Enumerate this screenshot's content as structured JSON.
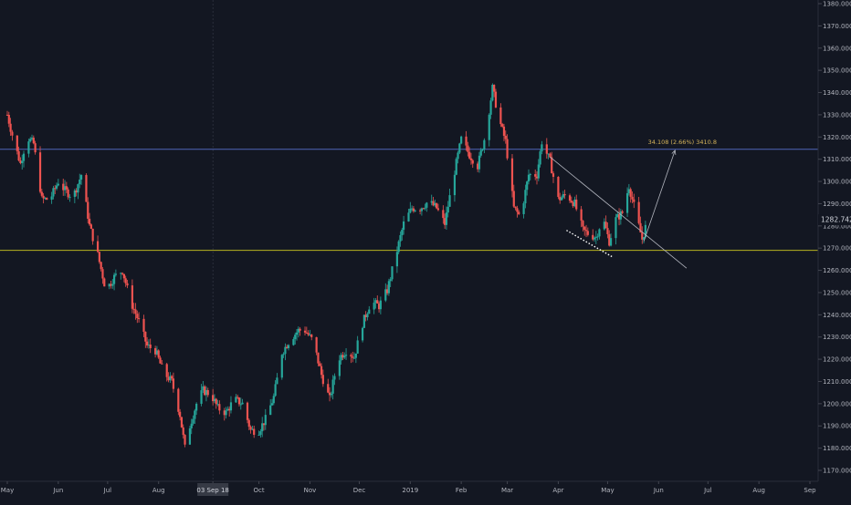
{
  "chart_data": {
    "type": "candlestick",
    "title": "",
    "xlabel": "",
    "ylabel": "",
    "ylim": [
      1165,
      1382
    ],
    "y_ticks": [
      1170,
      1180,
      1190,
      1200,
      1210,
      1220,
      1230,
      1240,
      1250,
      1260,
      1270,
      1280,
      1290,
      1300,
      1310,
      1320,
      1330,
      1340,
      1350,
      1360,
      1370,
      1380
    ],
    "y_tick_labels": [
      "1170.000",
      "1180.000",
      "1190.000",
      "1200.000",
      "1210.000",
      "1220.000",
      "1230.000",
      "1240.000",
      "1250.000",
      "1260.000",
      "1270.000",
      "1280.000",
      "1290.000",
      "1300.000",
      "1310.000",
      "1320.000",
      "1330.000",
      "1340.000",
      "1350.000",
      "1360.000",
      "1370.000",
      "1380.000"
    ],
    "x_labels": [
      "May",
      "Jun",
      "Jul",
      "Aug",
      "03 Sep 18",
      "Oct",
      "Nov",
      "Dec",
      "2019",
      "Feb",
      "Mar",
      "Apr",
      "May",
      "Jun",
      "Jul",
      "Aug",
      "Sep"
    ],
    "highlighted_date": "03 Sep 18",
    "last_price": "1282.742",
    "price_path": [
      [
        "2018-05-01",
        1330
      ],
      [
        "2018-05-05",
        1318
      ],
      [
        "2018-05-09",
        1308
      ],
      [
        "2018-05-13",
        1320
      ],
      [
        "2018-05-17",
        1317
      ],
      [
        "2018-05-22",
        1292
      ],
      [
        "2018-05-27",
        1292
      ],
      [
        "2018-06-01",
        1300
      ],
      [
        "2018-06-05",
        1296
      ],
      [
        "2018-06-10",
        1293
      ],
      [
        "2018-06-15",
        1303
      ],
      [
        "2018-06-20",
        1280
      ],
      [
        "2018-06-25",
        1267
      ],
      [
        "2018-06-30",
        1251
      ],
      [
        "2018-07-05",
        1257
      ],
      [
        "2018-07-10",
        1260
      ],
      [
        "2018-07-15",
        1246
      ],
      [
        "2018-07-20",
        1237
      ],
      [
        "2018-07-25",
        1226
      ],
      [
        "2018-07-30",
        1224
      ],
      [
        "2018-08-04",
        1214
      ],
      [
        "2018-08-09",
        1210
      ],
      [
        "2018-08-14",
        1195
      ],
      [
        "2018-08-17",
        1180
      ],
      [
        "2018-08-20",
        1190
      ],
      [
        "2018-08-24",
        1200
      ],
      [
        "2018-08-28",
        1206
      ],
      [
        "2018-09-02",
        1204
      ],
      [
        "2018-09-06",
        1198
      ],
      [
        "2018-09-11",
        1196
      ],
      [
        "2018-09-16",
        1202
      ],
      [
        "2018-09-21",
        1200
      ],
      [
        "2018-09-26",
        1188
      ],
      [
        "2018-10-01",
        1188
      ],
      [
        "2018-10-05",
        1193
      ],
      [
        "2018-10-10",
        1203
      ],
      [
        "2018-10-15",
        1223
      ],
      [
        "2018-10-20",
        1229
      ],
      [
        "2018-10-25",
        1233
      ],
      [
        "2018-10-29",
        1233
      ],
      [
        "2018-11-03",
        1228
      ],
      [
        "2018-11-08",
        1213
      ],
      [
        "2018-11-13",
        1202
      ],
      [
        "2018-11-18",
        1220
      ],
      [
        "2018-11-23",
        1224
      ],
      [
        "2018-11-28",
        1221
      ],
      [
        "2018-12-03",
        1236
      ],
      [
        "2018-12-08",
        1246
      ],
      [
        "2018-12-13",
        1244
      ],
      [
        "2018-12-18",
        1251
      ],
      [
        "2018-12-23",
        1266
      ],
      [
        "2018-12-28",
        1281
      ],
      [
        "2019-01-02",
        1288
      ],
      [
        "2019-01-07",
        1288
      ],
      [
        "2019-01-12",
        1291
      ],
      [
        "2019-01-17",
        1288
      ],
      [
        "2019-01-22",
        1281
      ],
      [
        "2019-01-27",
        1301
      ],
      [
        "2019-02-01",
        1319
      ],
      [
        "2019-02-06",
        1312
      ],
      [
        "2019-02-11",
        1307
      ],
      [
        "2019-02-16",
        1322
      ],
      [
        "2019-02-20",
        1342
      ],
      [
        "2019-02-24",
        1328
      ],
      [
        "2019-02-28",
        1318
      ],
      [
        "2019-03-05",
        1288
      ],
      [
        "2019-03-09",
        1284
      ],
      [
        "2019-03-14",
        1303
      ],
      [
        "2019-03-19",
        1303
      ],
      [
        "2019-03-22",
        1318
      ],
      [
        "2019-03-27",
        1309
      ],
      [
        "2019-04-01",
        1292
      ],
      [
        "2019-04-06",
        1294
      ],
      [
        "2019-04-11",
        1290
      ],
      [
        "2019-04-16",
        1278
      ],
      [
        "2019-04-20",
        1276
      ],
      [
        "2019-04-24",
        1275
      ],
      [
        "2019-04-28",
        1284
      ],
      [
        "2019-05-02",
        1273
      ],
      [
        "2019-05-06",
        1283
      ],
      [
        "2019-05-10",
        1286
      ],
      [
        "2019-05-14",
        1298
      ],
      [
        "2019-05-18",
        1286
      ],
      [
        "2019-05-22",
        1274
      ],
      [
        "2019-05-25",
        1282
      ]
    ],
    "horizontal_lines": [
      {
        "price": 1314.5,
        "color": "#4f67b8"
      },
      {
        "price": 1269,
        "color": "#b6b321"
      }
    ],
    "projection": {
      "start": [
        "2019-05-23",
        1273
      ],
      "end": [
        "2019-06-11",
        1314
      ],
      "label": "34.108 (2.66%) 3410.8",
      "color": "#d6b55a"
    },
    "trendline": {
      "start": [
        "2019-03-27",
        1311
      ],
      "end": [
        "2019-06-18",
        1261
      ]
    },
    "dotted_support": {
      "start": [
        "2019-04-06",
        1278
      ],
      "end": [
        "2019-05-04",
        1266
      ]
    },
    "colors": {
      "background": "#131722",
      "up": "#26a69a",
      "down": "#ef5350",
      "grid": "#1e222d",
      "axis_text": "#b2b5be",
      "price_label_bg": "#131722"
    }
  }
}
